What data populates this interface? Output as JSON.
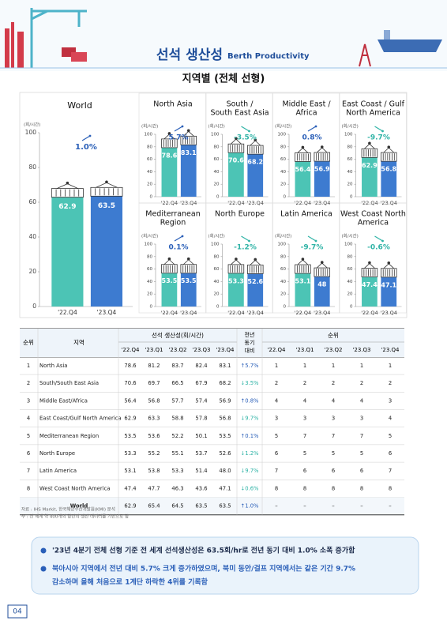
{
  "header": {
    "title": "선석 생산성",
    "title_en": "Berth Productivity",
    "section": "지역별 (전체 선형)"
  },
  "chart_data": [
    {
      "type": "bar",
      "title": [
        "World"
      ],
      "unit": "(회/시간)",
      "categories": [
        "'22.Q4",
        "'23.Q4"
      ],
      "values": [
        62.9,
        63.5
      ],
      "colors": [
        "#4cc4b5",
        "#3d7bd0"
      ],
      "ylim": [
        0,
        100
      ],
      "yticks": [
        0,
        20,
        40,
        60,
        80,
        100
      ],
      "annotation": "1.0%"
    },
    {
      "type": "bar",
      "title": [
        "North Asia"
      ],
      "unit": "(회/시간)",
      "categories": [
        "'22.Q4",
        "'23.Q4"
      ],
      "values": [
        78.6,
        83.1
      ],
      "colors": [
        "#4cc4b5",
        "#3d7bd0"
      ],
      "ylim": [
        0,
        100
      ],
      "yticks": [
        0,
        20,
        40,
        60,
        80,
        100
      ],
      "annotation": "5.7%"
    },
    {
      "type": "bar",
      "title": [
        "South /",
        "South East Asia"
      ],
      "unit": "(회/시간)",
      "categories": [
        "'22.Q4",
        "'23.Q4"
      ],
      "values": [
        70.6,
        68.2
      ],
      "colors": [
        "#4cc4b5",
        "#3d7bd0"
      ],
      "ylim": [
        0,
        100
      ],
      "yticks": [
        0,
        20,
        40,
        60,
        80,
        100
      ],
      "annotation": "-3.5%"
    },
    {
      "type": "bar",
      "title": [
        "Middle East /",
        "Africa"
      ],
      "unit": "(회/시간)",
      "categories": [
        "'22.Q4",
        "'23.Q4"
      ],
      "values": [
        56.4,
        56.9
      ],
      "colors": [
        "#4cc4b5",
        "#3d7bd0"
      ],
      "ylim": [
        0,
        100
      ],
      "yticks": [
        0,
        20,
        40,
        60,
        80,
        100
      ],
      "annotation": "0.8%"
    },
    {
      "type": "bar",
      "title": [
        "East Coast / Gulf",
        "North America"
      ],
      "unit": "(회/시간)",
      "categories": [
        "'22.Q4",
        "'23.Q4"
      ],
      "values": [
        62.9,
        56.8
      ],
      "colors": [
        "#4cc4b5",
        "#3d7bd0"
      ],
      "ylim": [
        0,
        100
      ],
      "yticks": [
        0,
        20,
        40,
        60,
        80,
        100
      ],
      "annotation": "-9.7%"
    },
    {
      "type": "bar",
      "title": [
        "Mediterranean",
        "Region"
      ],
      "unit": "(회/시간)",
      "categories": [
        "'22.Q4",
        "'23.Q4"
      ],
      "values": [
        53.5,
        53.5
      ],
      "colors": [
        "#4cc4b5",
        "#3d7bd0"
      ],
      "ylim": [
        0,
        100
      ],
      "yticks": [
        0,
        20,
        40,
        60,
        80,
        100
      ],
      "annotation": "0.1%"
    },
    {
      "type": "bar",
      "title": [
        "North Europe"
      ],
      "unit": "(회/시간)",
      "categories": [
        "'22.Q4",
        "'23.Q4"
      ],
      "values": [
        53.3,
        52.6
      ],
      "colors": [
        "#4cc4b5",
        "#3d7bd0"
      ],
      "ylim": [
        0,
        100
      ],
      "yticks": [
        0,
        20,
        40,
        60,
        80,
        100
      ],
      "annotation": "-1.2%"
    },
    {
      "type": "bar",
      "title": [
        "Latin America"
      ],
      "unit": "(회/시간)",
      "categories": [
        "'22.Q4",
        "'23.Q4"
      ],
      "values": [
        53.1,
        48.0
      ],
      "colors": [
        "#4cc4b5",
        "#3d7bd0"
      ],
      "ylim": [
        0,
        100
      ],
      "yticks": [
        0,
        20,
        40,
        60,
        80,
        100
      ],
      "annotation": "-9.7%"
    },
    {
      "type": "bar",
      "title": [
        "West Coast North",
        "America"
      ],
      "unit": "(회/시간)",
      "categories": [
        "'22.Q4",
        "'23.Q4"
      ],
      "values": [
        47.4,
        47.1
      ],
      "colors": [
        "#4cc4b5",
        "#3d7bd0"
      ],
      "ylim": [
        0,
        100
      ],
      "yticks": [
        0,
        20,
        40,
        60,
        80,
        100
      ],
      "annotation": "-0.6%"
    }
  ],
  "table": {
    "header": {
      "rank": "순위",
      "region": "지역",
      "productivity": "선석 생산성(회/시간)",
      "change": [
        "전년",
        "동기",
        "대비"
      ],
      "ranking": "순위",
      "quarters": [
        "'22.Q4",
        "'23.Q1",
        "'23.Q2",
        "'23.Q3",
        "'23.Q4"
      ]
    },
    "rows": [
      [
        "1",
        "North Asia",
        "78.6",
        "81.2",
        "83.7",
        "82.4",
        "83.1",
        "↑5.7%",
        "1",
        "1",
        "1",
        "1",
        "1"
      ],
      [
        "2",
        "South/South East Asia",
        "70.6",
        "69.7",
        "66.5",
        "67.9",
        "68.2",
        "↓3.5%",
        "2",
        "2",
        "2",
        "2",
        "2"
      ],
      [
        "3",
        "Middle East/Africa",
        "56.4",
        "56.8",
        "57.7",
        "57.4",
        "56.9",
        "↑0.8%",
        "4",
        "4",
        "4",
        "4",
        "3"
      ],
      [
        "4",
        "East Coast/Gulf North America",
        "62.9",
        "63.3",
        "58.8",
        "57.8",
        "56.8",
        "↓9.7%",
        "3",
        "3",
        "3",
        "3",
        "4"
      ],
      [
        "5",
        "Mediterranean Region",
        "53.5",
        "53.6",
        "52.2",
        "50.1",
        "53.5",
        "↑0.1%",
        "5",
        "7",
        "7",
        "7",
        "5"
      ],
      [
        "6",
        "North Europe",
        "53.3",
        "55.2",
        "55.1",
        "53.7",
        "52.6",
        "↓1.2%",
        "6",
        "5",
        "5",
        "5",
        "6"
      ],
      [
        "7",
        "Latin America",
        "53.1",
        "53.8",
        "53.3",
        "51.4",
        "48.0",
        "↓9.7%",
        "7",
        "6",
        "6",
        "6",
        "7"
      ],
      [
        "8",
        "West Coast North America",
        "47.4",
        "47.7",
        "46.3",
        "43.6",
        "47.1",
        "↓0.6%",
        "8",
        "8",
        "8",
        "8",
        "8"
      ]
    ],
    "world": [
      "World",
      "62.9",
      "65.4",
      "64.5",
      "63.5",
      "63.5",
      "↑1.0%",
      "–",
      "–",
      "–",
      "–",
      "–"
    ]
  },
  "notes": [
    "자료 : IHS Markit, 한국해양수산개발원(KMI) 분석",
    "주 : 전 세계 약 400개의 항만의 생산 데이터를 기반으로 함"
  ],
  "summary": [
    "'23년 4분기 전체 선형 기준 전 세계 선석생산성은 63.5회/hr로 전년 동기 대비 1.0% 소폭 증가함",
    "북아시아 지역에서 전년 대비 5.7% 크게 증가하였으며, 북미 동안/걸프 지역에서는 같은 기간 9.7%",
    "감소하며 올해 처음으로 1계단 하락한 4위를 기록함"
  ],
  "page_number": "04"
}
